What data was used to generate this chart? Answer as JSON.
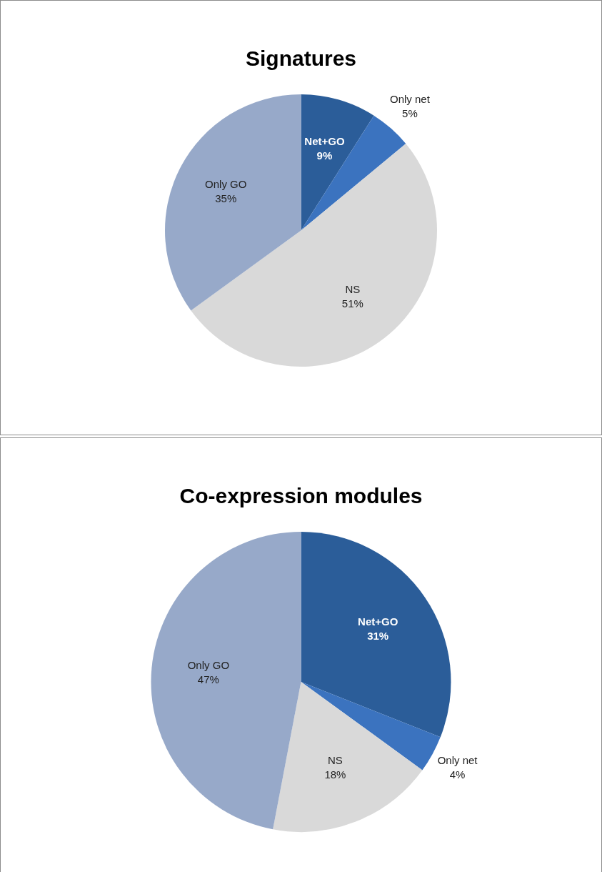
{
  "chart_data": [
    {
      "type": "pie",
      "title": "Signatures",
      "categories": [
        "Net+GO",
        "Only net",
        "NS",
        "Only GO"
      ],
      "values": [
        9,
        5,
        51,
        35
      ],
      "value_labels": [
        "9%",
        "5%",
        "51%",
        "35%"
      ],
      "colors": [
        "#2b5d99",
        "#3b73bf",
        "#d9d9d9",
        "#97a9c9"
      ],
      "legend": false
    },
    {
      "type": "pie",
      "title": "Co-expression modules",
      "categories": [
        "Net+GO",
        "Only net",
        "NS",
        "Only GO"
      ],
      "values": [
        31,
        4,
        18,
        47
      ],
      "value_labels": [
        "31%",
        "4%",
        "18%",
        "47%"
      ],
      "colors": [
        "#2b5d99",
        "#3b73bf",
        "#d9d9d9",
        "#97a9c9"
      ],
      "legend": false
    }
  ]
}
